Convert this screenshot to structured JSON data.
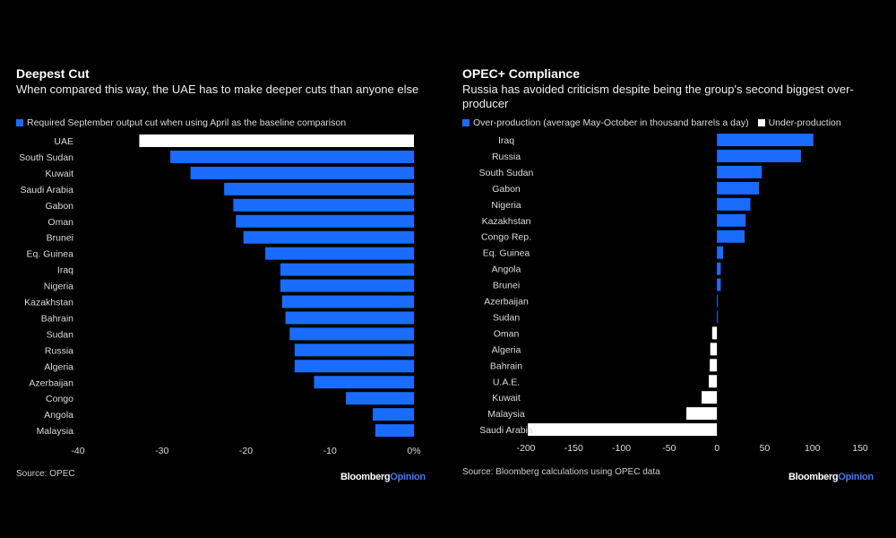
{
  "chart_data": [
    {
      "type": "bar",
      "orientation": "horizontal",
      "title": "Deepest Cut",
      "subtitle": "When compared this way, the UAE has to make deeper cuts than anyone else",
      "legend": [
        {
          "label": "Required September output cut when using April as the baseline comparison",
          "color": "#1a6cff"
        }
      ],
      "categories": [
        "UAE",
        "South Sudan",
        "Kuwait",
        "Saudi Arabia",
        "Gabon",
        "Oman",
        "Brunei",
        "Eq. Guinea",
        "Iraq",
        "Nigeria",
        "Kazakhstan",
        "Bahrain",
        "Sudan",
        "Russia",
        "Algeria",
        "Azerbaijan",
        "Congo",
        "Angola",
        "Malaysia"
      ],
      "values": [
        -32.7,
        -29,
        -26.6,
        -22.6,
        -21.5,
        -21.2,
        -20.3,
        -17.7,
        -15.9,
        -15.9,
        -15.7,
        -15.3,
        -14.8,
        -14.2,
        -14.2,
        -11.9,
        -8.1,
        -4.9,
        -4.6
      ],
      "highlight": {
        "category": "UAE",
        "color": "#ffffff"
      },
      "xlim": [
        -40,
        0
      ],
      "xticks": [
        -40,
        -30,
        -20,
        -10,
        0
      ],
      "xtick_labels": [
        "-40",
        "-30",
        "-20",
        "-10",
        "0%"
      ],
      "bar_color": "#1a6cff",
      "grid": false,
      "source": "Source: OPEC"
    },
    {
      "type": "bar",
      "orientation": "horizontal",
      "title": "OPEC+ Compliance",
      "subtitle": "Russia has avoided criticism despite being the group's second biggest over-producer",
      "legend": [
        {
          "label": "Over-production (average May-October in thousand barrels a day)",
          "color": "#1a6cff"
        },
        {
          "label": "Under-production",
          "color": "#ffffff"
        }
      ],
      "categories": [
        "Iraq",
        "Russia",
        "South Sudan",
        "Gabon",
        "Nigeria",
        "Kazakhstan",
        "Congo Rep.",
        "Eq. Guinea",
        "Angola",
        "Brunei",
        "Azerbaijan",
        "Sudan",
        "Oman",
        "Algeria",
        "Bahrain",
        "U.A.E.",
        "Kuwait",
        "Malaysia",
        "Saudi Arabia"
      ],
      "values": [
        101,
        88,
        47,
        44,
        35,
        30,
        29,
        6.5,
        4,
        4,
        1,
        1,
        -5,
        -7,
        -7.5,
        -8.5,
        -16,
        -32,
        -198
      ],
      "xlim": [
        -200,
        150
      ],
      "xticks": [
        -200,
        -150,
        -100,
        -50,
        0,
        50,
        100,
        150
      ],
      "xtick_labels": [
        "-200",
        "-150",
        "-100",
        "-50",
        "0",
        "50",
        "100",
        "150"
      ],
      "grid": false,
      "source": "Source: Bloomberg calculations using OPEC data"
    }
  ],
  "brand": {
    "part1": "Bloomberg",
    "part2": "Opinion"
  }
}
